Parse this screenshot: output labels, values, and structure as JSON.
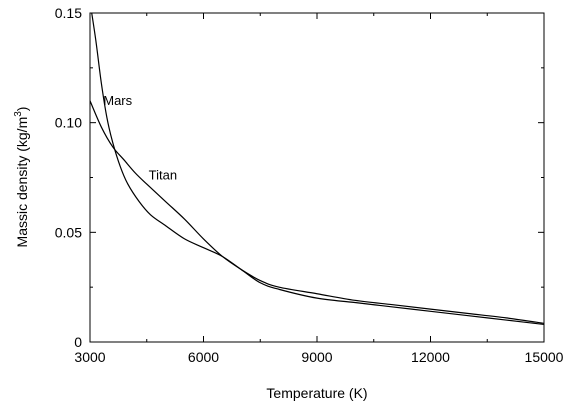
{
  "chart_data": {
    "type": "line",
    "xlabel": "Temperature (K)",
    "ylabel": "Massic density (kg/m",
    "ylabel_superscript": "3",
    "ylabel_suffix": ")",
    "xlim": [
      3000,
      15000
    ],
    "ylim": [
      0,
      0.15
    ],
    "xticks": [
      3000,
      6000,
      9000,
      12000,
      15000
    ],
    "xtick_labels": [
      "3000",
      "6000",
      "9000",
      "12000",
      "15000"
    ],
    "yticks": [
      0,
      0.05,
      0.1,
      0.15
    ],
    "ytick_labels": [
      "0",
      "0.05",
      "0.10",
      "0.15"
    ],
    "grid": false,
    "series": [
      {
        "name": "Mars",
        "x": [
          3000,
          3150,
          3300,
          3450,
          3600,
          3800,
          4000,
          4300,
          4600,
          5000,
          5500,
          6000,
          6500,
          7000,
          7500,
          8000,
          9000,
          10000,
          11000,
          12000,
          13000,
          14000,
          15000
        ],
        "y": [
          0.155,
          0.138,
          0.118,
          0.102,
          0.091,
          0.08,
          0.072,
          0.064,
          0.058,
          0.053,
          0.047,
          0.043,
          0.039,
          0.033,
          0.027,
          0.024,
          0.02,
          0.018,
          0.016,
          0.014,
          0.012,
          0.01,
          0.008
        ]
      },
      {
        "name": "Titan",
        "x": [
          3000,
          3300,
          3600,
          3900,
          4200,
          4500,
          5000,
          5500,
          6000,
          6500,
          7000,
          7500,
          8000,
          9000,
          10000,
          11000,
          12000,
          13000,
          14000,
          15000
        ],
        "y": [
          0.11,
          0.098,
          0.089,
          0.083,
          0.077,
          0.072,
          0.064,
          0.056,
          0.047,
          0.039,
          0.033,
          0.028,
          0.025,
          0.022,
          0.019,
          0.017,
          0.015,
          0.013,
          0.011,
          0.0085
        ]
      }
    ],
    "annotations": [
      {
        "text": "Mars",
        "x": 3350,
        "y": 0.108
      },
      {
        "text": "Titan",
        "x": 4550,
        "y": 0.074
      }
    ]
  }
}
